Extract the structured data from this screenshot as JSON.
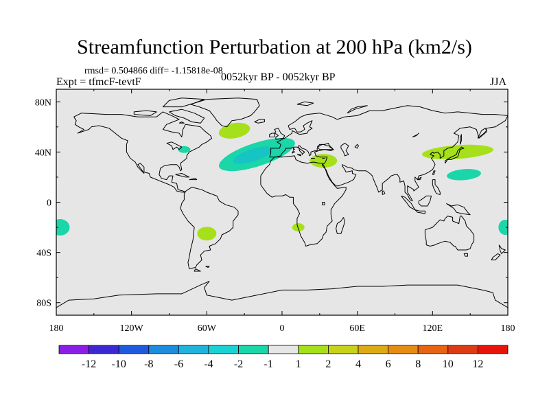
{
  "title": "Streamfunction Perturbation at 200 hPa (km2/s)",
  "stats": {
    "text": "rmsd= 0.504866 diff= -1.15818e-08"
  },
  "experiment": "Expt = tfmcF-tevtF",
  "period": "0052kyr BP - 0052kyr BP",
  "season": "JJA",
  "colors": {
    "map_background": "#e6e6e6",
    "coastline": "#000000",
    "negative_fill": "#1ad6a8",
    "negative_core": "#16c4c4",
    "positive_fill": "#a6e01a"
  },
  "map": {
    "y_ticks": [
      "80N",
      "40N",
      "0",
      "40S",
      "80S"
    ],
    "x_ticks": [
      "180",
      "120W",
      "60W",
      "0",
      "60E",
      "120E",
      "180"
    ],
    "anomalies": [
      {
        "sign": "positive",
        "lon": -38,
        "lat": 57
      },
      {
        "sign": "negative",
        "lon": -20,
        "lat": 38
      },
      {
        "sign": "negative",
        "lon": -78,
        "lat": 42
      },
      {
        "sign": "positive",
        "lon": 33,
        "lat": 33
      },
      {
        "sign": "positive",
        "lon": 140,
        "lat": 40
      },
      {
        "sign": "negative",
        "lon": 145,
        "lat": 22
      },
      {
        "sign": "negative",
        "lon": -177,
        "lat": -20
      },
      {
        "sign": "negative",
        "lon": 178,
        "lat": -20
      },
      {
        "sign": "positive",
        "lon": -60,
        "lat": -25
      },
      {
        "sign": "positive",
        "lon": 13,
        "lat": -20
      }
    ]
  },
  "colorbar": {
    "colors": [
      "#8a1ee6",
      "#3c28d2",
      "#1e5adc",
      "#1e8cdc",
      "#1eb4dc",
      "#1ad2d2",
      "#1ad6a8",
      "#e6e6e6",
      "#a6e01a",
      "#c8d21a",
      "#dcaa14",
      "#e68c14",
      "#e66414",
      "#dc3c14",
      "#e6140a"
    ],
    "labels": [
      "-12",
      "-10",
      "-8",
      "-6",
      "-4",
      "-2",
      "-1",
      "1",
      "2",
      "4",
      "6",
      "8",
      "10",
      "12"
    ]
  }
}
